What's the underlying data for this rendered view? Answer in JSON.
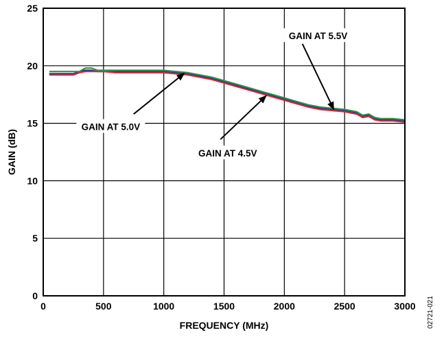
{
  "chart_data": {
    "type": "line",
    "xlabel": "FREQUENCY (MHz)",
    "ylabel": "GAIN (dB)",
    "xlim": [
      0,
      3000
    ],
    "ylim": [
      0,
      25
    ],
    "xticks": [
      0,
      500,
      1000,
      1500,
      2000,
      2500,
      3000
    ],
    "yticks": [
      0,
      5,
      10,
      15,
      20,
      25
    ],
    "grid": true,
    "figure_id": "02721-021",
    "series": [
      {
        "color": "#1f2f8f",
        "x": [
          50,
          150,
          250,
          300,
          350,
          400,
          450,
          500,
          600,
          700,
          800,
          900,
          1000,
          1100,
          1200,
          1300,
          1400,
          1500,
          1600,
          1700,
          1800,
          1900,
          2000,
          2100,
          2200,
          2300,
          2400,
          2500,
          2550,
          2600,
          2650,
          2700,
          2750,
          2800,
          2850,
          2900,
          3000
        ],
        "y": [
          19.3,
          19.3,
          19.3,
          19.5,
          19.6,
          19.6,
          19.5,
          19.5,
          19.5,
          19.5,
          19.5,
          19.5,
          19.5,
          19.4,
          19.3,
          19.1,
          18.9,
          18.6,
          18.3,
          18.0,
          17.7,
          17.4,
          17.1,
          16.8,
          16.5,
          16.3,
          16.2,
          16.1,
          16.0,
          15.9,
          15.6,
          15.7,
          15.4,
          15.3,
          15.3,
          15.3,
          15.2
        ]
      },
      {
        "color": "#d42a3a",
        "x": [
          50,
          150,
          250,
          300,
          350,
          400,
          450,
          500,
          600,
          700,
          800,
          900,
          1000,
          1100,
          1200,
          1300,
          1400,
          1500,
          1600,
          1700,
          1800,
          1900,
          2000,
          2100,
          2200,
          2300,
          2400,
          2500,
          2550,
          2600,
          2650,
          2700,
          2750,
          2800,
          2850,
          2900,
          3000
        ],
        "y": [
          19.2,
          19.2,
          19.2,
          19.4,
          19.5,
          19.5,
          19.5,
          19.5,
          19.4,
          19.4,
          19.4,
          19.4,
          19.4,
          19.3,
          19.2,
          19.0,
          18.8,
          18.5,
          18.2,
          17.9,
          17.6,
          17.3,
          17.0,
          16.7,
          16.4,
          16.2,
          16.1,
          16.0,
          15.9,
          15.8,
          15.5,
          15.6,
          15.3,
          15.2,
          15.2,
          15.2,
          15.1
        ]
      },
      {
        "color": "#2f8f4a",
        "x": [
          50,
          150,
          250,
          300,
          350,
          400,
          450,
          500,
          600,
          700,
          800,
          900,
          1000,
          1100,
          1200,
          1300,
          1400,
          1500,
          1600,
          1700,
          1800,
          1900,
          2000,
          2100,
          2200,
          2300,
          2400,
          2500,
          2550,
          2600,
          2650,
          2700,
          2750,
          2800,
          2850,
          2900,
          3000
        ],
        "y": [
          19.5,
          19.5,
          19.5,
          19.5,
          19.8,
          19.8,
          19.6,
          19.6,
          19.6,
          19.6,
          19.6,
          19.6,
          19.6,
          19.5,
          19.4,
          19.2,
          19.0,
          18.7,
          18.4,
          18.1,
          17.8,
          17.5,
          17.2,
          16.9,
          16.6,
          16.4,
          16.3,
          16.2,
          16.1,
          16.0,
          15.7,
          15.8,
          15.5,
          15.4,
          15.4,
          15.4,
          15.3
        ]
      }
    ],
    "annotations": [
      {
        "text": "GAIN AT 5.5V",
        "text_at": [
          2280,
          22.6
        ],
        "arrow_from": [
          2150,
          21.9
        ],
        "arrow_to": [
          2410,
          16.2
        ]
      },
      {
        "text": "GAIN AT 5.0V",
        "text_at": [
          560,
          14.7
        ],
        "arrow_from": [
          750,
          15.8
        ],
        "arrow_to": [
          1170,
          19.35
        ]
      },
      {
        "text": "GAIN AT 4.5V",
        "text_at": [
          1530,
          12.4
        ],
        "arrow_from": [
          1470,
          13.6
        ],
        "arrow_to": [
          1850,
          17.4
        ]
      }
    ]
  }
}
